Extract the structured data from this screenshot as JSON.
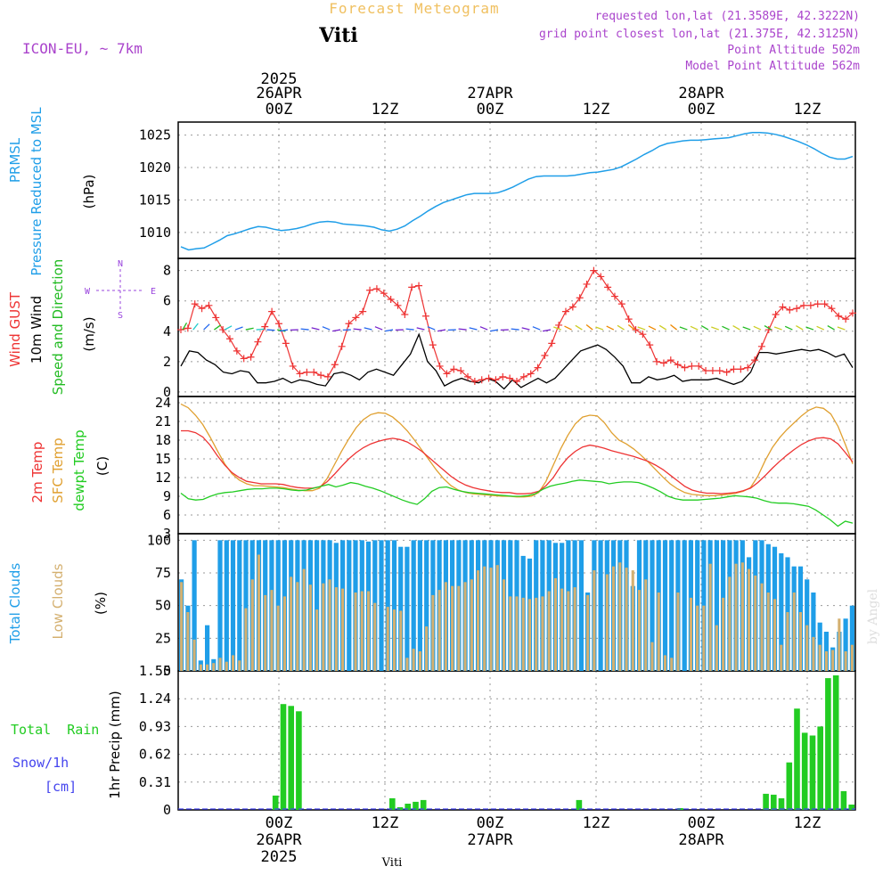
{
  "header": {
    "product_title": "Forecast Meteogram",
    "location": "Viti",
    "model": "ICON-EU, ~ 7km",
    "requested": "requested lon,lat (21.3589E, 42.3222N)",
    "grid_point": "grid point closest lon,lat (21.375E, 42.3125N)",
    "point_altitude": "Point Altitude 502m",
    "model_altitude": "Model Point Altitude 562m",
    "credit": "by Angel",
    "footer_location": "Viti"
  },
  "colors": {
    "pressure": "#1f9ee8",
    "gust": "#ee3333",
    "wind": "#000000",
    "dir_label": "#22bb22",
    "temp2m": "#ee3333",
    "sfc": "#e0a030",
    "dewpt": "#22cc22",
    "total_clouds": "#1f9ee8",
    "low_clouds": "#d4b070",
    "rain": "#22cc22",
    "snow": "#4444ee",
    "compass": "#9944dd",
    "header_purple": "#aa44cc",
    "header_orange": "#f0c060"
  },
  "time_axis": {
    "top_ticks": [
      "00Z",
      "12Z",
      "00Z",
      "12Z",
      "00Z",
      "12Z"
    ],
    "top_dates": [
      "26APR",
      "27APR",
      "28APR"
    ],
    "year": "2025",
    "bottom_ticks": [
      "00Z",
      "12Z",
      "00Z",
      "12Z",
      "00Z",
      "12Z"
    ],
    "bottom_dates": [
      "26APR",
      "27APR",
      "28APR"
    ]
  },
  "compass": {
    "n": "N",
    "s": "S",
    "w": "W",
    "e": "E"
  },
  "chart_data": [
    {
      "type": "line",
      "panel": "pressure",
      "side_labels": [
        "PRMSL",
        "Pressure Reduced to MSL"
      ],
      "unit_label": "(hPa)",
      "ylim": [
        1006,
        1027
      ],
      "yticks": [
        "1010",
        "1015",
        "1020",
        "1025"
      ],
      "series": [
        {
          "name": "PRMSL",
          "values": [
            1007.8,
            1007.3,
            1007.5,
            1007.6,
            1008.2,
            1008.8,
            1009.5,
            1009.8,
            1010.2,
            1010.6,
            1010.9,
            1010.8,
            1010.5,
            1010.3,
            1010.4,
            1010.6,
            1010.9,
            1011.3,
            1011.6,
            1011.7,
            1011.6,
            1011.3,
            1011.2,
            1011.1,
            1011.0,
            1010.8,
            1010.4,
            1010.2,
            1010.5,
            1011.0,
            1011.8,
            1012.5,
            1013.3,
            1014.0,
            1014.6,
            1015.0,
            1015.4,
            1015.8,
            1016.0,
            1016.0,
            1016.0,
            1016.1,
            1016.5,
            1017.0,
            1017.6,
            1018.2,
            1018.6,
            1018.7,
            1018.7,
            1018.7,
            1018.7,
            1018.8,
            1019.0,
            1019.2,
            1019.3,
            1019.5,
            1019.7,
            1020.1,
            1020.7,
            1021.3,
            1022.0,
            1022.6,
            1023.3,
            1023.7,
            1023.9,
            1024.1,
            1024.2,
            1024.2,
            1024.3,
            1024.4,
            1024.5,
            1024.6,
            1024.9,
            1025.2,
            1025.4,
            1025.4,
            1025.3,
            1025.1,
            1024.8,
            1024.4,
            1024.0,
            1023.5,
            1022.9,
            1022.2,
            1021.6,
            1021.3,
            1021.3,
            1021.7
          ]
        }
      ]
    },
    {
      "type": "line",
      "panel": "wind",
      "side_labels": [
        "Wind GUST",
        "10m Wind",
        "Speed and Direction"
      ],
      "unit_label": "(m/s)",
      "ylim": [
        -0.3,
        8.8
      ],
      "yticks": [
        "0",
        "2",
        "4",
        "6",
        "8"
      ],
      "series": [
        {
          "name": "Wind GUST",
          "values": [
            4.1,
            4.2,
            5.8,
            5.5,
            5.7,
            4.9,
            4.1,
            3.5,
            2.7,
            2.2,
            2.3,
            3.3,
            4.3,
            5.3,
            4.5,
            3.2,
            1.7,
            1.2,
            1.3,
            1.3,
            1.1,
            1.0,
            1.8,
            3.0,
            4.5,
            4.9,
            5.3,
            6.7,
            6.8,
            6.5,
            6.1,
            5.7,
            5.1,
            6.9,
            7.0,
            5.0,
            3.1,
            1.7,
            1.2,
            1.5,
            1.4,
            1.0,
            0.7,
            0.8,
            0.9,
            0.8,
            1.0,
            0.9,
            0.7,
            1.0,
            1.2,
            1.6,
            2.4,
            3.2,
            4.4,
            5.3,
            5.6,
            6.2,
            7.1,
            8.0,
            7.6,
            6.9,
            6.3,
            5.8,
            4.8,
            4.1,
            3.8,
            3.1,
            2.0,
            1.9,
            2.1,
            1.8,
            1.6,
            1.7,
            1.7,
            1.4,
            1.4,
            1.4,
            1.3,
            1.5,
            1.5,
            1.6,
            2.1,
            3.0,
            4.1,
            5.1,
            5.6,
            5.4,
            5.5,
            5.7,
            5.7,
            5.8,
            5.8,
            5.5,
            5.0,
            4.8,
            5.2
          ]
        },
        {
          "name": "10m Wind",
          "values": [
            1.7,
            2.7,
            2.6,
            2.1,
            1.8,
            1.3,
            1.2,
            1.4,
            1.3,
            0.6,
            0.6,
            0.7,
            0.9,
            0.6,
            0.8,
            0.7,
            0.5,
            0.4,
            1.2,
            1.3,
            1.1,
            0.8,
            1.3,
            1.5,
            1.3,
            1.1,
            1.8,
            2.5,
            3.8,
            2.0,
            1.4,
            0.4,
            0.7,
            0.9,
            0.7,
            0.6,
            0.9,
            0.7,
            0.2,
            0.8,
            0.3,
            0.6,
            0.9,
            0.6,
            0.9,
            1.5,
            2.1,
            2.7,
            2.9,
            3.1,
            2.8,
            2.3,
            1.7,
            0.6,
            0.6,
            1.0,
            0.8,
            0.9,
            1.1,
            0.7,
            0.8,
            0.8,
            0.8,
            0.9,
            0.7,
            0.5,
            0.7,
            1.3,
            2.6,
            2.6,
            2.5,
            2.6,
            2.7,
            2.8,
            2.7,
            2.8,
            2.6,
            2.3,
            2.5,
            1.6
          ]
        }
      ]
    },
    {
      "type": "line",
      "panel": "temperature",
      "side_labels": [
        "2m Temp",
        "SFC Temp",
        "dewpt Temp"
      ],
      "unit_label": "(C)",
      "ylim": [
        3,
        25
      ],
      "yticks": [
        "3",
        "6",
        "9",
        "12",
        "15",
        "18",
        "21",
        "24"
      ],
      "series": [
        {
          "name": "2m Temp",
          "values": [
            19.5,
            19.5,
            19.2,
            18.5,
            17.2,
            15.5,
            14.0,
            12.8,
            12.0,
            11.4,
            11.2,
            11.0,
            11.0,
            11.0,
            10.9,
            10.6,
            10.4,
            10.3,
            10.3,
            10.5,
            11.3,
            12.5,
            13.8,
            15.0,
            16.0,
            16.8,
            17.4,
            17.8,
            18.1,
            18.3,
            18.1,
            17.7,
            17.0,
            16.2,
            15.2,
            14.2,
            13.2,
            12.2,
            11.4,
            10.8,
            10.4,
            10.1,
            9.9,
            9.7,
            9.6,
            9.6,
            9.4,
            9.4,
            9.5,
            9.8,
            10.7,
            12.0,
            13.8,
            15.2,
            16.2,
            16.9,
            17.2,
            17.0,
            16.7,
            16.3,
            16.0,
            15.7,
            15.4,
            15.0,
            14.6,
            14.0,
            13.3,
            12.4,
            11.5,
            10.6,
            10.0,
            9.7,
            9.5,
            9.5,
            9.4,
            9.5,
            9.6,
            9.9,
            10.3,
            11.2,
            12.3,
            13.5,
            14.6,
            15.6,
            16.5,
            17.3,
            17.9,
            18.3,
            18.4,
            18.2,
            17.4,
            16.0,
            14.5
          ]
        },
        {
          "name": "SFC Temp",
          "values": [
            23.8,
            23.2,
            22.0,
            20.5,
            18.5,
            16.3,
            14.2,
            12.6,
            11.6,
            11.0,
            10.7,
            10.7,
            10.6,
            10.5,
            10.4,
            10.2,
            10.0,
            9.9,
            9.9,
            10.3,
            11.8,
            14.0,
            16.2,
            18.2,
            20.0,
            21.3,
            22.1,
            22.4,
            22.3,
            21.7,
            20.7,
            19.5,
            18.0,
            16.4,
            14.8,
            13.2,
            11.8,
            10.7,
            10.0,
            9.6,
            9.4,
            9.3,
            9.2,
            9.1,
            9.0,
            9.0,
            8.9,
            8.9,
            9.0,
            9.6,
            11.4,
            14.0,
            16.6,
            18.8,
            20.6,
            21.7,
            22.0,
            21.9,
            20.8,
            19.2,
            18.0,
            17.4,
            16.6,
            15.6,
            14.5,
            13.3,
            12.1,
            11.0,
            10.2,
            9.6,
            9.3,
            9.2,
            9.1,
            9.1,
            9.2,
            9.3,
            9.5,
            9.8,
            10.4,
            12.2,
            14.7,
            16.8,
            18.4,
            19.7,
            20.8,
            21.9,
            22.8,
            23.3,
            23.1,
            22.2,
            20.2,
            17.3,
            14.2
          ]
        },
        {
          "name": "dewpt Temp",
          "values": [
            9.5,
            8.6,
            8.4,
            8.5,
            9.0,
            9.4,
            9.6,
            9.7,
            9.9,
            10.1,
            10.2,
            10.2,
            10.3,
            10.3,
            10.2,
            10.0,
            9.9,
            10.0,
            10.3,
            10.6,
            10.9,
            10.5,
            10.8,
            11.2,
            11.0,
            10.6,
            10.3,
            9.9,
            9.4,
            8.9,
            8.4,
            8.0,
            7.7,
            8.6,
            9.8,
            10.4,
            10.5,
            10.1,
            9.8,
            9.6,
            9.5,
            9.4,
            9.3,
            9.2,
            9.1,
            9.0,
            9.0,
            9.1,
            9.4,
            10.1,
            10.6,
            10.9,
            11.1,
            11.4,
            11.6,
            11.5,
            11.4,
            11.3,
            11.0,
            11.2,
            11.3,
            11.3,
            11.2,
            10.8,
            10.3,
            9.7,
            9.0,
            8.6,
            8.4,
            8.4,
            8.4,
            8.5,
            8.6,
            8.7,
            8.9,
            9.1,
            9.0,
            8.9,
            8.7,
            8.3,
            8.0,
            7.9,
            7.9,
            7.8,
            7.6,
            7.4,
            6.8,
            6.0,
            5.2,
            4.2,
            5.0,
            4.7
          ]
        }
      ]
    },
    {
      "type": "bar",
      "panel": "clouds",
      "side_labels": [
        "Total Clouds",
        "Low Clouds"
      ],
      "unit_label": "(%)",
      "ylim": [
        0,
        105
      ],
      "yticks": [
        "0",
        "25",
        "50",
        "75",
        "100"
      ],
      "series": [
        {
          "name": "Total Clouds",
          "values": [
            70,
            50,
            100,
            8,
            35,
            9,
            100,
            100,
            100,
            100,
            100,
            100,
            100,
            100,
            100,
            100,
            100,
            100,
            100,
            100,
            100,
            100,
            100,
            100,
            98,
            100,
            100,
            100,
            100,
            99,
            100,
            100,
            100,
            100,
            95,
            95,
            100,
            100,
            100,
            100,
            100,
            100,
            100,
            100,
            100,
            100,
            100,
            100,
            100,
            100,
            100,
            100,
            100,
            88,
            86,
            100,
            100,
            100,
            98,
            98,
            100,
            100,
            100,
            60,
            100,
            100,
            100,
            100,
            100,
            100,
            65,
            100,
            100,
            100,
            100,
            100,
            100,
            100,
            100,
            100,
            100,
            100,
            100,
            100,
            100,
            100,
            100,
            100,
            87,
            100,
            100,
            97,
            95,
            90,
            87,
            80,
            80,
            70,
            60,
            37,
            30,
            18,
            30,
            40,
            50
          ]
        },
        {
          "name": "Low Clouds",
          "values": [
            68,
            45,
            24,
            5,
            5,
            6,
            10,
            7,
            12,
            8,
            48,
            70,
            89,
            58,
            62,
            50,
            57,
            72,
            68,
            78,
            66,
            47,
            67,
            70,
            64,
            63,
            0,
            60,
            61,
            61,
            52,
            0,
            49,
            47,
            46,
            10,
            17,
            15,
            34,
            58,
            62,
            68,
            65,
            65,
            68,
            70,
            77,
            80,
            79,
            81,
            70,
            57,
            57,
            56,
            55,
            56,
            57,
            61,
            71,
            63,
            61,
            64,
            0,
            58,
            77,
            0,
            74,
            80,
            83,
            79,
            77,
            62,
            70,
            22,
            60,
            12,
            10,
            60,
            0,
            56,
            50,
            50,
            82,
            35,
            56,
            72,
            82,
            83,
            78,
            73,
            67,
            60,
            55,
            20,
            45,
            60,
            45,
            35,
            26,
            20,
            15,
            16,
            40,
            15,
            20
          ]
        }
      ]
    },
    {
      "type": "bar",
      "panel": "precip",
      "side_labels": [
        "1hr Precip (mm)"
      ],
      "left_labels": [
        "Total  Rain",
        "Snow/1h",
        "[cm]"
      ],
      "ylim": [
        0,
        1.55
      ],
      "yticks": [
        "0",
        "0.31",
        "0.62",
        "0.93",
        "1.24",
        "1.55"
      ],
      "series": [
        {
          "name": "1hr Precip",
          "values": [
            0,
            0,
            0,
            0,
            0,
            0,
            0,
            0,
            0,
            0,
            0,
            0,
            0.16,
            1.18,
            1.16,
            1.1,
            0,
            0,
            0,
            0,
            0,
            0,
            0,
            0,
            0,
            0,
            0,
            0.13,
            0.03,
            0.07,
            0.09,
            0.11,
            0,
            0,
            0,
            0,
            0,
            0,
            0,
            0,
            0,
            0,
            0,
            0,
            0,
            0,
            0,
            0,
            0,
            0,
            0,
            0.11,
            0,
            0,
            0,
            0,
            0,
            0,
            0,
            0,
            0,
            0,
            0,
            0,
            0.02,
            0,
            0,
            0,
            0,
            0,
            0,
            0,
            0,
            0,
            0,
            0.18,
            0.17,
            0.13,
            0.53,
            1.13,
            0.86,
            0.83,
            0.93,
            1.47,
            1.5,
            0.21,
            0.06
          ]
        }
      ]
    }
  ]
}
